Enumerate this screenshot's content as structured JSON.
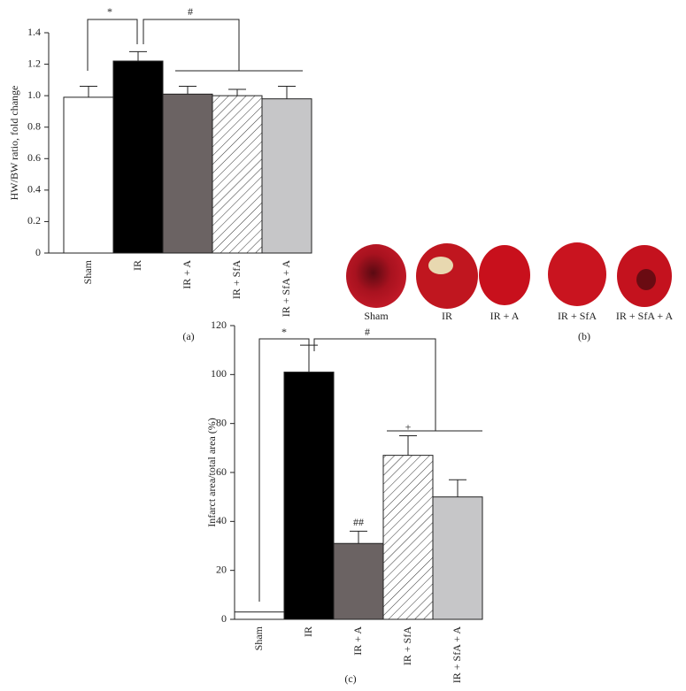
{
  "chart_data": [
    {
      "type": "bar",
      "panel_label": "(a)",
      "y_label": "HW/BW ratio, fold change",
      "categories": [
        "Sham",
        "IR",
        "IR + A",
        "IR + SfA",
        "IR + SfA + A"
      ],
      "values": [
        0.99,
        1.22,
        1.01,
        1.0,
        0.98
      ],
      "errors": [
        0.07,
        0.06,
        0.05,
        0.04,
        0.08
      ],
      "colors": [
        "#ffffff",
        "#000000",
        "#6b6363",
        "#ffffff",
        "#c6c6c8"
      ],
      "hatched": [
        false,
        false,
        false,
        true,
        false
      ],
      "ylim": [
        0,
        1.4
      ],
      "yticks": [
        0,
        0.2,
        0.4,
        0.6,
        0.8,
        {
          "value": 1,
          "label": "1.0"
        },
        1.2,
        1.4
      ],
      "annotations": [
        "*",
        "#"
      ],
      "bar_labels": [
        null,
        null,
        null,
        null,
        null
      ]
    },
    {
      "type": "bar",
      "panel_label": "(c)",
      "y_label": "Infarct area/total area (%)",
      "categories": [
        "Sham",
        "IR",
        "IR + A",
        "IR + SfA",
        "IR + SfA + A"
      ],
      "values": [
        3,
        101,
        31,
        67,
        50
      ],
      "errors": [
        null,
        11,
        5,
        8,
        7
      ],
      "colors": [
        "#ffffff",
        "#000000",
        "#6b6363",
        "#ffffff",
        "#c6c6c8"
      ],
      "hatched": [
        false,
        false,
        false,
        true,
        false
      ],
      "ylim": [
        0,
        120
      ],
      "yticks": [
        0,
        20,
        40,
        60,
        80,
        100,
        120
      ],
      "annotations": [
        "*",
        "#"
      ],
      "bar_labels": [
        null,
        null,
        "##",
        "+",
        null
      ]
    }
  ],
  "photos": {
    "panel_label": "(b)",
    "labels": [
      "Sham",
      "IR",
      "IR + A",
      "IR + SfA",
      "IR + SfA + A"
    ]
  }
}
